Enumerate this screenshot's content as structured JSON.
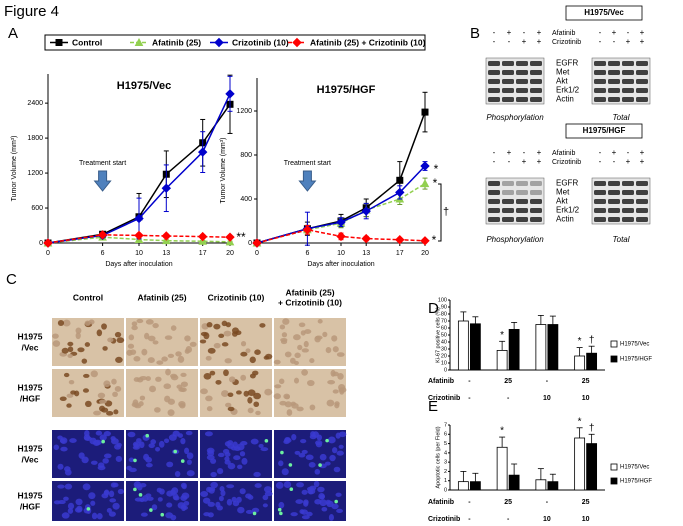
{
  "title": "Figure 4",
  "panel_labels": [
    "A",
    "B",
    "C",
    "D",
    "E"
  ],
  "chart_data": [
    {
      "type": "line",
      "title": "H1975/Vec",
      "x_label": "Days after inoculation",
      "y_label": "Tumor Volume (mm³)",
      "x": [
        0,
        6,
        10,
        13,
        17,
        20
      ],
      "xlim": [
        0,
        20
      ],
      "xticks": [
        0,
        6,
        10,
        13,
        17,
        20
      ],
      "ylim": [
        0,
        2900
      ],
      "yticks": [
        0,
        600,
        1200,
        1800,
        2400
      ],
      "annotations": [
        "Treatment start",
        "**"
      ],
      "series": [
        {
          "name": "Control",
          "color": "#000000",
          "marker": "square",
          "line_style": "solid",
          "values": [
            0,
            150,
            450,
            1180,
            1720,
            2380
          ],
          "errors": [
            0,
            40,
            400,
            400,
            400,
            500
          ]
        },
        {
          "name": "Afatinib (25)",
          "color": "#92d050",
          "marker": "triangle",
          "line_style": "dashed",
          "values": [
            0,
            100,
            60,
            40,
            30,
            20
          ],
          "errors": [
            0,
            30,
            20,
            15,
            15,
            10
          ]
        },
        {
          "name": "Crizotinib (10)",
          "color": "#0000cc",
          "marker": "diamond",
          "line_style": "solid",
          "values": [
            0,
            130,
            420,
            940,
            1560,
            2560
          ],
          "errors": [
            0,
            40,
            350,
            400,
            350,
            300
          ]
        },
        {
          "name": "Afatinib (25) + Crizotinib (10)",
          "color": "#ff0000",
          "marker": "diamond",
          "line_style": "dashed",
          "values": [
            0,
            140,
            130,
            120,
            110,
            100
          ],
          "errors": [
            0,
            30,
            30,
            30,
            30,
            20
          ]
        }
      ]
    },
    {
      "type": "line",
      "title": "H1975/HGF",
      "x_label": "Days after inoculation",
      "y_label": "Tumor Volume (mm³)",
      "x": [
        0,
        6,
        10,
        13,
        17,
        20
      ],
      "xlim": [
        0,
        20
      ],
      "xticks": [
        0,
        6,
        10,
        13,
        17,
        20
      ],
      "ylim": [
        0,
        1500
      ],
      "yticks": [
        0,
        400,
        800,
        1200
      ],
      "annotations": [
        "Treatment start",
        "*",
        "*",
        "*",
        "†"
      ],
      "series": [
        {
          "color": "#000000",
          "marker": "square",
          "line_style": "solid",
          "values": [
            0,
            130,
            200,
            320,
            570,
            1190
          ],
          "errors": [
            0,
            60,
            60,
            80,
            170,
            180
          ]
        },
        {
          "color": "#92d050",
          "marker": "triangle",
          "line_style": "dashed",
          "values": [
            0,
            120,
            180,
            300,
            400,
            540
          ],
          "errors": [
            0,
            40,
            40,
            60,
            50,
            50
          ]
        },
        {
          "color": "#0000cc",
          "marker": "diamond",
          "line_style": "solid",
          "values": [
            0,
            130,
            190,
            290,
            460,
            700
          ],
          "errors": [
            0,
            150,
            40,
            70,
            60,
            40
          ]
        },
        {
          "color": "#ff0000",
          "marker": "diamond",
          "line_style": "dashed",
          "values": [
            0,
            120,
            60,
            40,
            30,
            20
          ],
          "errors": [
            0,
            40,
            30,
            20,
            15,
            10
          ]
        }
      ]
    },
    {
      "type": "bar",
      "y_label": "Ki-67 positive cells (%)",
      "categories": [
        null,
        null,
        null,
        null
      ],
      "ylim": [
        0,
        100
      ],
      "yticks": [
        0,
        10,
        20,
        30,
        40,
        50,
        60,
        70,
        80,
        90,
        100
      ],
      "treatments": [
        {
          "name": "Afatinib",
          "labels": [
            "-",
            "25",
            "-",
            "25"
          ]
        },
        {
          "name": "Crizotinib",
          "labels": [
            "-",
            "-",
            "10",
            "10"
          ]
        }
      ],
      "annotations": [
        "*",
        "*",
        "†"
      ],
      "series": [
        {
          "name": "H1975/Vec",
          "color": "#ffffff",
          "values": [
            70,
            28,
            65,
            20
          ],
          "errors": [
            13,
            13,
            13,
            12
          ]
        },
        {
          "name": "H1975/HGF",
          "color": "#000000",
          "values": [
            66,
            58,
            65,
            24
          ],
          "errors": [
            10,
            10,
            12,
            10
          ]
        }
      ]
    },
    {
      "type": "bar",
      "y_label": "Apoptotic cells (per Field)",
      "categories": [
        null,
        null,
        null,
        null
      ],
      "ylim": [
        0,
        7
      ],
      "yticks": [
        0,
        1,
        2,
        3,
        4,
        5,
        6,
        7
      ],
      "treatments": [
        {
          "name": "Afatinib",
          "labels": [
            "-",
            "25",
            "-",
            "25"
          ]
        },
        {
          "name": "Crizotinib",
          "labels": [
            "-",
            "-",
            "10",
            "10"
          ]
        }
      ],
      "annotations": [
        "*",
        "*",
        "†"
      ],
      "series": [
        {
          "name": "H1975/Vec",
          "color": "#ffffff",
          "values": [
            0.9,
            4.6,
            1.1,
            5.6
          ],
          "errors": [
            1.1,
            1.1,
            1.2,
            1.1
          ]
        },
        {
          "name": "H1975/HGF",
          "color": "#000000",
          "values": [
            0.9,
            1.6,
            0.9,
            5.0
          ],
          "errors": [
            0.9,
            1.2,
            0.8,
            1.0
          ]
        }
      ]
    }
  ],
  "panel_b": {
    "blots": [
      {
        "title": "H1975/Vec",
        "treatments": [
          {
            "name": "Afatinib",
            "signs": [
              "-",
              "+",
              "-",
              "+",
              "-",
              "+",
              "-",
              "+"
            ]
          },
          {
            "name": "Crizotinib",
            "signs": [
              "-",
              "-",
              "+",
              "+",
              "-",
              "-",
              "+",
              "+"
            ]
          }
        ],
        "proteins": [
          "EGFR",
          "Met",
          "Akt",
          "Erk1/2",
          "Actin"
        ],
        "captions": [
          "Phosphorylation",
          "Total"
        ]
      },
      {
        "title": "H1975/HGF",
        "treatments": [
          {
            "name": "Afatinib",
            "signs": [
              "-",
              "+",
              "-",
              "+",
              "-",
              "+",
              "-",
              "+"
            ]
          },
          {
            "name": "Crizotinib",
            "signs": [
              "-",
              "-",
              "+",
              "+",
              "-",
              "-",
              "+",
              "+"
            ]
          }
        ],
        "proteins": [
          "EGFR",
          "Met",
          "Akt",
          "Erk1/2",
          "Actin"
        ],
        "captions": [
          "Phosphorylation",
          "Total"
        ]
      }
    ]
  },
  "panel_c": {
    "columns": [
      [
        "Control"
      ],
      [
        "Afatinib (25)"
      ],
      [
        "Crizotinib (10)"
      ],
      [
        "Afatinib (25)",
        "+ Crizotinib (10)"
      ]
    ],
    "rows": [
      [
        "H1975",
        "/Vec"
      ],
      [
        "H1975",
        "/HGF"
      ],
      [
        "H1975",
        "/Vec"
      ],
      [
        "H1975",
        "/HGF"
      ]
    ]
  }
}
